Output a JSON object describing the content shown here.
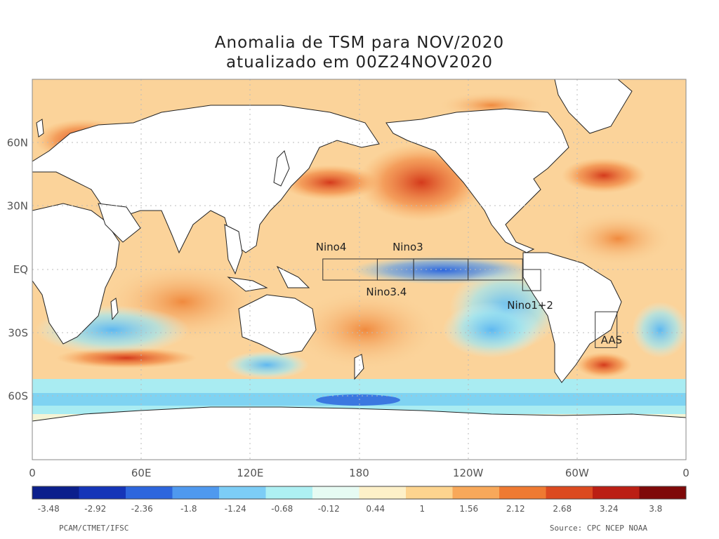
{
  "title": {
    "line1": "Anomalia de TSM para NOV/2020",
    "line2": "atualizado em 00Z24NOV2020"
  },
  "axes": {
    "lon_ticks": [
      "0",
      "60E",
      "120E",
      "180",
      "120W",
      "60W",
      "0"
    ],
    "lat_ticks": [
      "60N",
      "30N",
      "EQ",
      "30S",
      "60S"
    ]
  },
  "regions": [
    {
      "label": "Nino4",
      "lon": [
        160,
        210
      ],
      "lat": [
        -5,
        5
      ]
    },
    {
      "label": "Nino3.4",
      "lon": [
        190,
        240
      ],
      "lat": [
        -5,
        5
      ]
    },
    {
      "label": "Nino3",
      "lon": [
        210,
        270
      ],
      "lat": [
        -5,
        5
      ]
    },
    {
      "label": "Nino1+2",
      "lon": [
        270,
        280
      ],
      "lat": [
        -10,
        0
      ]
    },
    {
      "label": "AAS",
      "lon": [
        310,
        322
      ],
      "lat": [
        -37,
        -20
      ]
    }
  ],
  "colorbar": {
    "ticks": [
      "-3.48",
      "-2.92",
      "-2.36",
      "-1.8",
      "-1.24",
      "-0.68",
      "-0.12",
      "0.44",
      "1",
      "1.56",
      "2.12",
      "2.68",
      "3.24",
      "3.8"
    ],
    "colors": [
      "#0b1f8c",
      "#1535b8",
      "#2d66dd",
      "#4f99ef",
      "#7ccdf6",
      "#aef0f3",
      "#e6fbf3",
      "#fdf0c8",
      "#fdd48f",
      "#f8a85a",
      "#ef7a32",
      "#dc4a20",
      "#bb1f14",
      "#7f0909"
    ]
  },
  "footer": {
    "left": "PCAM/CTMET/IFSC",
    "right": "Source: CPC NCEP NOAA"
  }
}
